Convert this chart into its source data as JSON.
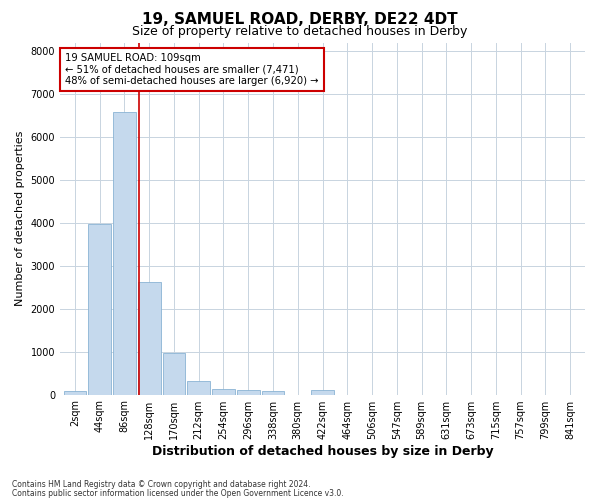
{
  "title1": "19, SAMUEL ROAD, DERBY, DE22 4DT",
  "title2": "Size of property relative to detached houses in Derby",
  "xlabel": "Distribution of detached houses by size in Derby",
  "ylabel": "Number of detached properties",
  "annotation_title": "19 SAMUEL ROAD: 109sqm",
  "annotation_line1": "← 51% of detached houses are smaller (7,471)",
  "annotation_line2": "48% of semi-detached houses are larger (6,920) →",
  "footer1": "Contains HM Land Registry data © Crown copyright and database right 2024.",
  "footer2": "Contains public sector information licensed under the Open Government Licence v3.0.",
  "bar_labels": [
    "2sqm",
    "44sqm",
    "86sqm",
    "128sqm",
    "170sqm",
    "212sqm",
    "254sqm",
    "296sqm",
    "338sqm",
    "380sqm",
    "422sqm",
    "464sqm",
    "506sqm",
    "547sqm",
    "589sqm",
    "631sqm",
    "673sqm",
    "715sqm",
    "757sqm",
    "799sqm",
    "841sqm"
  ],
  "bar_values": [
    80,
    3980,
    6580,
    2620,
    960,
    310,
    130,
    100,
    80,
    0,
    100,
    0,
    0,
    0,
    0,
    0,
    0,
    0,
    0,
    0,
    0
  ],
  "bar_color": "#c5d9ed",
  "bar_edge_color": "#8ab4d4",
  "vline_x": 2.58,
  "vline_color": "#cc0000",
  "ylim": [
    0,
    8200
  ],
  "yticks": [
    0,
    1000,
    2000,
    3000,
    4000,
    5000,
    6000,
    7000,
    8000
  ],
  "background_color": "#ffffff",
  "plot_bg_color": "#ffffff",
  "grid_color": "#c8d4e0",
  "annotation_box_color": "#ffffff",
  "annotation_box_edge": "#cc0000",
  "title1_fontsize": 11,
  "title2_fontsize": 9,
  "xlabel_fontsize": 9,
  "ylabel_fontsize": 8,
  "tick_fontsize": 7,
  "footer_fontsize": 5.5
}
